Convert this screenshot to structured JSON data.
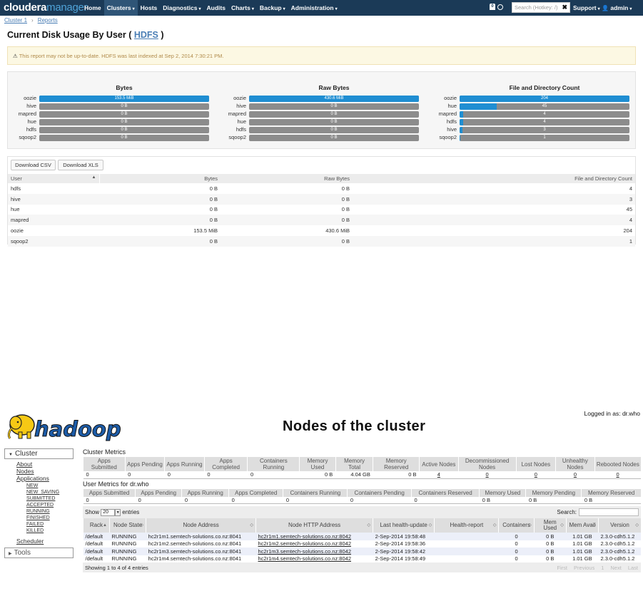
{
  "cloudera": {
    "logo": {
      "brand": "cloudera",
      "product": "manager"
    },
    "nav": [
      {
        "label": "Home",
        "caret": false,
        "active": false
      },
      {
        "label": "Clusters",
        "caret": true,
        "active": true
      },
      {
        "label": "Hosts",
        "caret": false,
        "active": false
      },
      {
        "label": "Diagnostics",
        "caret": true,
        "active": false
      },
      {
        "label": "Audits",
        "caret": false,
        "active": false
      },
      {
        "label": "Charts",
        "caret": true,
        "active": false
      },
      {
        "label": "Backup",
        "caret": true,
        "active": false
      },
      {
        "label": "Administration",
        "caret": true,
        "active": false
      }
    ],
    "bell_count": "0",
    "search_placeholder": "Search (Hotkey: /)",
    "support_label": "Support",
    "admin_label": "admin",
    "breadcrumb": [
      "Cluster 1",
      "Reports"
    ],
    "title_prefix": "Current Disk Usage By User (",
    "title_link": "HDFS",
    "title_suffix": ")",
    "warning": "This report may not be up-to-date. HDFS was last indexed at Sep 2, 2014 7:30:21 PM.",
    "bar_panels": [
      {
        "title": "Bytes",
        "rows": [
          {
            "label": "oozie",
            "fraction": 1.0,
            "value": "153.5 MiB"
          },
          {
            "label": "hive",
            "fraction": 0,
            "value": "0 B"
          },
          {
            "label": "mapred",
            "fraction": 0,
            "value": "0 B"
          },
          {
            "label": "hue",
            "fraction": 0,
            "value": "0 B"
          },
          {
            "label": "hdfs",
            "fraction": 0,
            "value": "0 B"
          },
          {
            "label": "sqoop2",
            "fraction": 0,
            "value": "0 B"
          }
        ]
      },
      {
        "title": "Raw Bytes",
        "rows": [
          {
            "label": "oozie",
            "fraction": 1.0,
            "value": "430.6 MiB"
          },
          {
            "label": "hive",
            "fraction": 0,
            "value": "0 B"
          },
          {
            "label": "mapred",
            "fraction": 0,
            "value": "0 B"
          },
          {
            "label": "hue",
            "fraction": 0,
            "value": "0 B"
          },
          {
            "label": "hdfs",
            "fraction": 0,
            "value": "0 B"
          },
          {
            "label": "sqoop2",
            "fraction": 0,
            "value": "0 B"
          }
        ]
      },
      {
        "title": "File and Directory Count",
        "rows": [
          {
            "label": "oozie",
            "fraction": 1.0,
            "value": "204"
          },
          {
            "label": "hue",
            "fraction": 0.22,
            "value": "45"
          },
          {
            "label": "mapred",
            "fraction": 0.02,
            "value": "4"
          },
          {
            "label": "hdfs",
            "fraction": 0.02,
            "value": "4"
          },
          {
            "label": "hive",
            "fraction": 0.015,
            "value": "3"
          },
          {
            "label": "sqoop2",
            "fraction": 0.005,
            "value": "1"
          }
        ]
      }
    ],
    "download_csv": "Download CSV",
    "download_xls": "Download XLS",
    "table": {
      "headers": [
        "User",
        "Bytes",
        "Raw Bytes",
        "File and Directory Count"
      ],
      "rows": [
        [
          "hdfs",
          "0 B",
          "0 B",
          "4"
        ],
        [
          "hive",
          "0 B",
          "0 B",
          "3"
        ],
        [
          "hue",
          "0 B",
          "0 B",
          "45"
        ],
        [
          "mapred",
          "0 B",
          "0 B",
          "4"
        ],
        [
          "oozie",
          "153.5 MiB",
          "430.6 MiB",
          "204"
        ],
        [
          "sqoop2",
          "0 B",
          "0 B",
          "1"
        ]
      ]
    }
  },
  "hadoop": {
    "logged_in": "Logged in as: dr.who",
    "logo_text": "hadoop",
    "title": "Nodes of the cluster",
    "sidebar": {
      "cluster": "Cluster",
      "links": [
        "About",
        "Nodes",
        "Applications"
      ],
      "app_states": [
        "NEW",
        "NEW_SAVING",
        "SUBMITTED",
        "ACCEPTED",
        "RUNNING",
        "FINISHED",
        "FAILED",
        "KILLED"
      ],
      "scheduler": "Scheduler",
      "tools": "Tools"
    },
    "cluster_metrics_label": "Cluster Metrics",
    "cluster_metrics": {
      "headers": [
        "Apps Submitted",
        "Apps Pending",
        "Apps Running",
        "Apps Completed",
        "Containers Running",
        "Memory Used",
        "Memory Total",
        "Memory Reserved",
        "Active Nodes",
        "Decommissioned Nodes",
        "Lost Nodes",
        "Unhealthy Nodes",
        "Rebooted Nodes"
      ],
      "values": [
        "0",
        "0",
        "0",
        "0",
        "0",
        "0 B",
        "4.04 GB",
        "0 B",
        "4",
        "0",
        "0",
        "0",
        "0"
      ]
    },
    "user_metrics_label": "User Metrics for dr.who",
    "user_metrics": {
      "headers": [
        "Apps Submitted",
        "Apps Pending",
        "Apps Running",
        "Apps Completed",
        "Containers Running",
        "Containers Pending",
        "Containers Reserved",
        "Memory Used",
        "Memory Pending",
        "Memory Reserved"
      ],
      "values": [
        "0",
        "0",
        "0",
        "0",
        "0",
        "0",
        "0",
        "0 B",
        "0 B",
        "0 B"
      ]
    },
    "show_label": "Show",
    "show_value": "20",
    "entries_label": "entries",
    "search_label": "Search:",
    "nodes": {
      "headers": [
        "Rack",
        "Node State",
        "Node Address",
        "Node HTTP Address",
        "Last health-update",
        "Health-report",
        "Containers",
        "Mem Used",
        "Mem Avail",
        "Version"
      ],
      "rows": [
        [
          "/default",
          "RUNNING",
          "hc2r1m1.semtech-solutions.co.nz:8041",
          "hc2r1m1.semtech-solutions.co.nz:8042",
          "2-Sep-2014 19:58:48",
          "",
          "0",
          "0 B",
          "1.01 GB",
          "2.3.0-cdh5.1.2"
        ],
        [
          "/default",
          "RUNNING",
          "hc2r1m2.semtech-solutions.co.nz:8041",
          "hc2r1m2.semtech-solutions.co.nz:8042",
          "2-Sep-2014 19:58:36",
          "",
          "0",
          "0 B",
          "1.01 GB",
          "2.3.0-cdh5.1.2"
        ],
        [
          "/default",
          "RUNNING",
          "hc2r1m3.semtech-solutions.co.nz:8041",
          "hc2r1m3.semtech-solutions.co.nz:8042",
          "2-Sep-2014 19:58:42",
          "",
          "0",
          "0 B",
          "1.01 GB",
          "2.3.0-cdh5.1.2"
        ],
        [
          "/default",
          "RUNNING",
          "hc2r1m4.semtech-solutions.co.nz:8041",
          "hc2r1m4.semtech-solutions.co.nz:8042",
          "2-Sep-2014 19:58:49",
          "",
          "0",
          "0 B",
          "1.01 GB",
          "2.3.0-cdh5.1.2"
        ]
      ]
    },
    "footer_info": "Showing 1 to 4 of 4 entries",
    "pager": [
      "First",
      "Previous",
      "1",
      "Next",
      "Last"
    ]
  }
}
